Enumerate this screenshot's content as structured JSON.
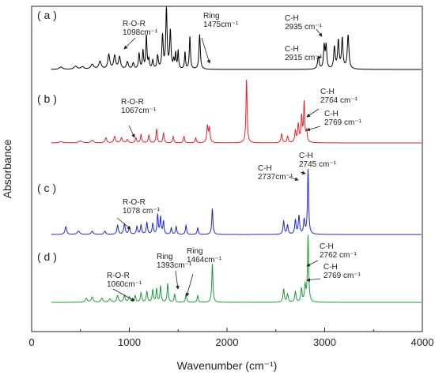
{
  "chart_data": {
    "type": "line",
    "xlabel": "Wavenumber (cm⁻¹)",
    "ylabel": "Absorbance",
    "xlim": [
      0,
      4000
    ],
    "xticks": [
      "0",
      "1000",
      "2000",
      "3000",
      "4000"
    ],
    "grid": false,
    "series": [
      {
        "panel": "( a )",
        "color": "#000000",
        "peaks": [
          [
            300,
            0.04,
            20
          ],
          [
            450,
            0.05,
            20
          ],
          [
            520,
            0.04,
            18
          ],
          [
            620,
            0.08,
            18
          ],
          [
            700,
            0.13,
            15
          ],
          [
            790,
            0.24,
            12
          ],
          [
            850,
            0.22,
            12
          ],
          [
            900,
            0.2,
            12
          ],
          [
            980,
            0.12,
            12
          ],
          [
            1040,
            0.1,
            10
          ],
          [
            1100,
            0.26,
            8
          ],
          [
            1140,
            0.3,
            7
          ],
          [
            1175,
            0.55,
            7
          ],
          [
            1200,
            0.15,
            7
          ],
          [
            1240,
            0.14,
            8
          ],
          [
            1290,
            0.22,
            8
          ],
          [
            1340,
            0.55,
            8
          ],
          [
            1380,
            1.0,
            8
          ],
          [
            1420,
            0.62,
            8
          ],
          [
            1455,
            0.14,
            7
          ],
          [
            1475,
            0.25,
            6
          ],
          [
            1500,
            0.3,
            6
          ],
          [
            1570,
            0.28,
            6
          ],
          [
            1620,
            0.54,
            7
          ],
          [
            1720,
            0.58,
            8
          ],
          [
            2935,
            0.2,
            10
          ],
          [
            2995,
            0.38,
            8
          ],
          [
            3015,
            0.38,
            8
          ],
          [
            3100,
            0.36,
            9
          ],
          [
            3140,
            0.46,
            9
          ],
          [
            3180,
            0.5,
            9
          ],
          [
            3240,
            0.56,
            10
          ]
        ],
        "annotations": [
          {
            "lines": [
              "R-O-R",
              "1098cm⁻¹"
            ],
            "x": 1098
          },
          {
            "lines": [
              "Ring",
              "1475cm⁻¹"
            ],
            "x": 1475
          },
          {
            "lines": [
              "C-H",
              "2935 cm⁻¹"
            ],
            "x": 2935
          },
          {
            "lines": [
              "C-H",
              "2915 cm⁻¹"
            ],
            "x": 2915
          }
        ]
      },
      {
        "panel": "( b )",
        "color": "#e8202a",
        "peaks": [
          [
            300,
            0.02,
            20
          ],
          [
            500,
            0.03,
            20
          ],
          [
            620,
            0.04,
            15
          ],
          [
            760,
            0.08,
            10
          ],
          [
            850,
            0.1,
            10
          ],
          [
            920,
            0.08,
            10
          ],
          [
            980,
            0.05,
            10
          ],
          [
            1067,
            0.08,
            8
          ],
          [
            1120,
            0.13,
            8
          ],
          [
            1200,
            0.12,
            8
          ],
          [
            1280,
            0.22,
            7
          ],
          [
            1350,
            0.16,
            7
          ],
          [
            1450,
            0.1,
            7
          ],
          [
            1560,
            0.1,
            7
          ],
          [
            1680,
            0.08,
            7
          ],
          [
            1800,
            0.26,
            8
          ],
          [
            1820,
            0.22,
            8
          ],
          [
            2200,
            1.0,
            7
          ],
          [
            2560,
            0.14,
            8
          ],
          [
            2620,
            0.1,
            8
          ],
          [
            2700,
            0.18,
            8
          ],
          [
            2730,
            0.28,
            8
          ],
          [
            2764,
            0.4,
            8
          ],
          [
            2790,
            0.62,
            7
          ],
          [
            2815,
            0.16,
            8
          ]
        ],
        "annotations": [
          {
            "lines": [
              "R-O-R",
              "1067cm⁻¹"
            ],
            "x": 1067
          },
          {
            "lines": [
              "C-H",
              "2764 cm⁻¹"
            ],
            "x": 2764
          },
          {
            "lines": [
              "C-H",
              "2769 cm⁻¹"
            ],
            "x": 2769
          }
        ]
      },
      {
        "panel": "( c )",
        "color": "#2026d6",
        "peaks": [
          [
            350,
            0.12,
            10
          ],
          [
            480,
            0.05,
            15
          ],
          [
            620,
            0.05,
            12
          ],
          [
            750,
            0.05,
            10
          ],
          [
            880,
            0.14,
            9
          ],
          [
            950,
            0.16,
            9
          ],
          [
            1000,
            0.1,
            9
          ],
          [
            1078,
            0.12,
            8
          ],
          [
            1120,
            0.14,
            8
          ],
          [
            1180,
            0.18,
            8
          ],
          [
            1240,
            0.16,
            8
          ],
          [
            1290,
            0.3,
            7
          ],
          [
            1320,
            0.26,
            7
          ],
          [
            1350,
            0.2,
            7
          ],
          [
            1430,
            0.1,
            7
          ],
          [
            1480,
            0.12,
            7
          ],
          [
            1580,
            0.14,
            7
          ],
          [
            1700,
            0.1,
            7
          ],
          [
            1850,
            0.4,
            7
          ],
          [
            2580,
            0.2,
            8
          ],
          [
            2620,
            0.14,
            8
          ],
          [
            2700,
            0.22,
            8
          ],
          [
            2737,
            0.28,
            8
          ],
          [
            2790,
            0.22,
            8
          ],
          [
            2830,
            1.0,
            7
          ]
        ],
        "annotations": [
          {
            "lines": [
              "C-H",
              "2745 cm⁻¹"
            ],
            "x": 2745
          },
          {
            "lines": [
              "C-H",
              "2737cm⁻¹"
            ],
            "x": 2737
          },
          {
            "lines": [
              "R-O-R",
              "1078 cm⁻¹"
            ],
            "x": 1078
          }
        ]
      },
      {
        "panel": "( d )",
        "color": "#1f9a3a",
        "peaks": [
          [
            560,
            0.06,
            12
          ],
          [
            620,
            0.08,
            12
          ],
          [
            720,
            0.06,
            12
          ],
          [
            800,
            0.05,
            12
          ],
          [
            880,
            0.1,
            10
          ],
          [
            950,
            0.1,
            10
          ],
          [
            1000,
            0.08,
            10
          ],
          [
            1060,
            0.1,
            8
          ],
          [
            1120,
            0.14,
            8
          ],
          [
            1180,
            0.16,
            8
          ],
          [
            1240,
            0.18,
            8
          ],
          [
            1280,
            0.2,
            7
          ],
          [
            1320,
            0.24,
            7
          ],
          [
            1393,
            0.28,
            7
          ],
          [
            1464,
            0.12,
            7
          ],
          [
            1580,
            0.12,
            7
          ],
          [
            1700,
            0.1,
            7
          ],
          [
            1850,
            0.58,
            7
          ],
          [
            2580,
            0.2,
            8
          ],
          [
            2620,
            0.12,
            8
          ],
          [
            2700,
            0.16,
            8
          ],
          [
            2762,
            0.2,
            8
          ],
          [
            2800,
            0.24,
            8
          ],
          [
            2830,
            1.0,
            7
          ]
        ],
        "annotations": [
          {
            "lines": [
              "Ring",
              "1393cm⁻¹"
            ],
            "x": 1393
          },
          {
            "lines": [
              "Ring",
              "1464cm⁻¹"
            ],
            "x": 1464
          },
          {
            "lines": [
              "C-H",
              "2762 cm⁻¹"
            ],
            "x": 2762
          },
          {
            "lines": [
              "C-H",
              "2769 cm⁻¹"
            ],
            "x": 2769
          },
          {
            "lines": [
              "R-O-R",
              "1060cm⁻¹"
            ],
            "x": 1060
          }
        ]
      }
    ]
  }
}
